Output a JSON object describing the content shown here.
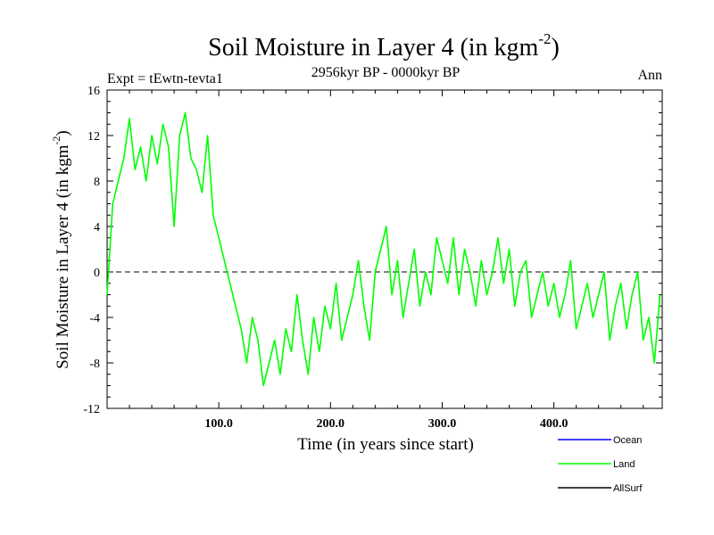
{
  "chart_data": {
    "type": "line",
    "title_main": "Soil Moisture in Layer 4 (in kgm",
    "title_sup": "-2",
    "title_close": ")",
    "subtitle": "2956kyr BP - 0000kyr BP",
    "expt_label": "Expt = tEwtn-tevta1",
    "season_label": "Ann",
    "xlabel": "Time (in years since start)",
    "ylabel_main": "Soil Moisture in Layer 4 (in kgm",
    "ylabel_sup": "-2",
    "ylabel_close": ")",
    "xlim": [
      0,
      497
    ],
    "ylim": [
      -12,
      16
    ],
    "x_ticks": [
      100,
      200,
      300,
      400
    ],
    "x_tick_labels": [
      "100.0",
      "200.0",
      "300.0",
      "400.0"
    ],
    "y_ticks": [
      -12,
      -8,
      -4,
      0,
      4,
      8,
      12,
      16
    ],
    "y_tick_labels": [
      "-12",
      "-8",
      "-4",
      "0",
      "4",
      "8",
      "12",
      "16"
    ],
    "zero_line": 0,
    "legend": [
      {
        "name": "Ocean",
        "color": "#0000ff"
      },
      {
        "name": "Land",
        "color": "#00ff00"
      },
      {
        "name": "AllSurf",
        "color": "#000000"
      }
    ],
    "series": [
      {
        "name": "Land",
        "color": "#00ff00",
        "x": [
          0,
          5,
          10,
          15,
          20,
          25,
          30,
          35,
          40,
          45,
          50,
          55,
          60,
          65,
          70,
          75,
          80,
          85,
          90,
          95,
          100,
          105,
          110,
          115,
          120,
          125,
          130,
          135,
          140,
          145,
          150,
          155,
          160,
          165,
          170,
          175,
          180,
          185,
          190,
          195,
          200,
          205,
          210,
          215,
          220,
          225,
          230,
          235,
          240,
          245,
          250,
          255,
          260,
          265,
          270,
          275,
          280,
          285,
          290,
          295,
          300,
          305,
          310,
          315,
          320,
          325,
          330,
          335,
          340,
          345,
          350,
          355,
          360,
          365,
          370,
          375,
          380,
          385,
          390,
          395,
          400,
          405,
          410,
          415,
          420,
          425,
          430,
          435,
          440,
          445,
          450,
          455,
          460,
          465,
          470,
          475,
          480,
          485,
          490,
          495
        ],
        "values": [
          -2,
          6,
          8,
          10,
          13.5,
          9,
          11,
          8,
          12,
          9.5,
          13,
          11,
          4,
          12,
          14,
          10,
          9,
          7,
          12,
          5,
          3,
          1,
          -1,
          -3,
          -5,
          -8,
          -4,
          -6,
          -10,
          -8,
          -6,
          -9,
          -5,
          -7,
          -2,
          -6,
          -9,
          -4,
          -7,
          -3,
          -5,
          -1,
          -6,
          -4,
          -2,
          1,
          -3,
          -6,
          0,
          2,
          4,
          -2,
          1,
          -4,
          -1,
          2,
          -3,
          0,
          -2,
          3,
          1,
          -1,
          3,
          -2,
          2,
          0,
          -3,
          1,
          -2,
          0,
          3,
          -1,
          2,
          -3,
          0,
          1,
          -4,
          -2,
          0,
          -3,
          -1,
          -4,
          -2,
          1,
          -5,
          -3,
          -1,
          -4,
          -2,
          0,
          -6,
          -3,
          -1,
          -5,
          -2,
          0,
          -6,
          -4,
          -8,
          -2
        ]
      }
    ]
  }
}
